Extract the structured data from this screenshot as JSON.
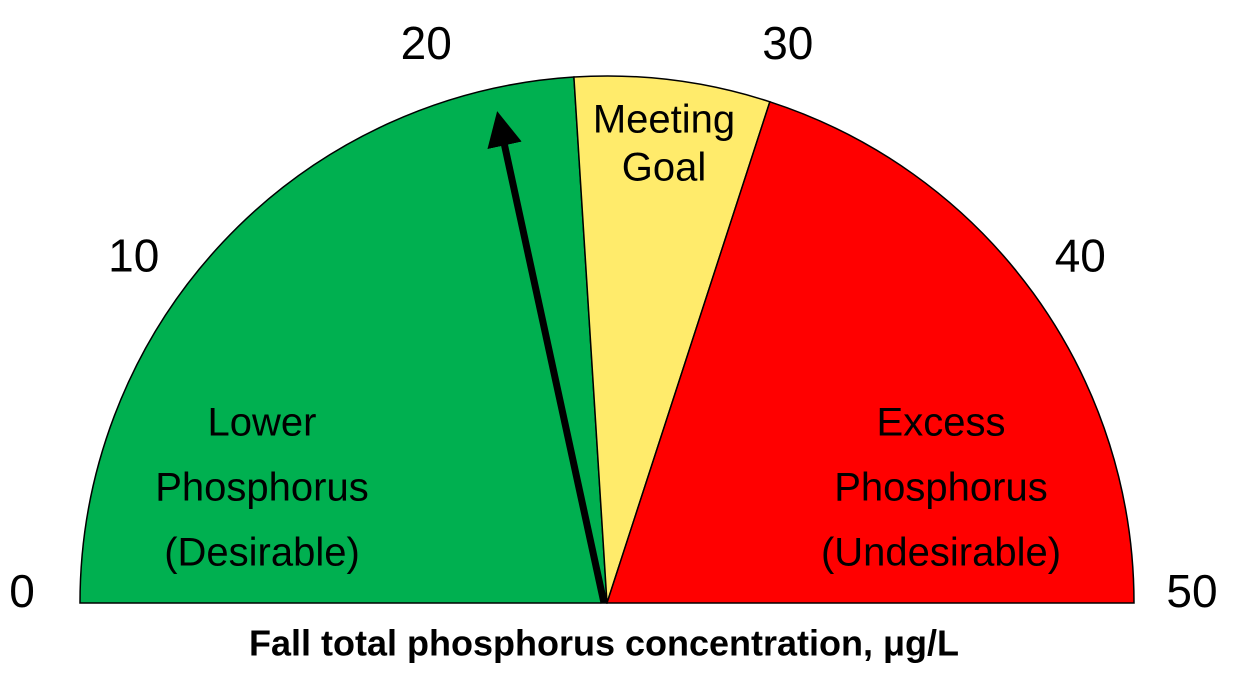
{
  "chart_data": {
    "type": "gauge",
    "xlim": [
      0,
      50
    ],
    "xticks": [
      0,
      10,
      20,
      30,
      40,
      50
    ],
    "bands": [
      {
        "from": 0,
        "to": 24,
        "color": "#00b050",
        "label": [
          "Lower",
          "Phosphorus",
          "(Desirable)"
        ]
      },
      {
        "from": 24,
        "to": 30,
        "color": "#ffeb6b",
        "label": [
          "Meeting",
          "Goal"
        ]
      },
      {
        "from": 30,
        "to": 50,
        "color": "#ff0000",
        "label": [
          "Excess",
          "Phosphorus",
          "(Undesirable)"
        ]
      }
    ],
    "value": 21.5,
    "needle_color": "#000000",
    "xlabel": "Fall total phosphorus concentration, μg/L"
  }
}
